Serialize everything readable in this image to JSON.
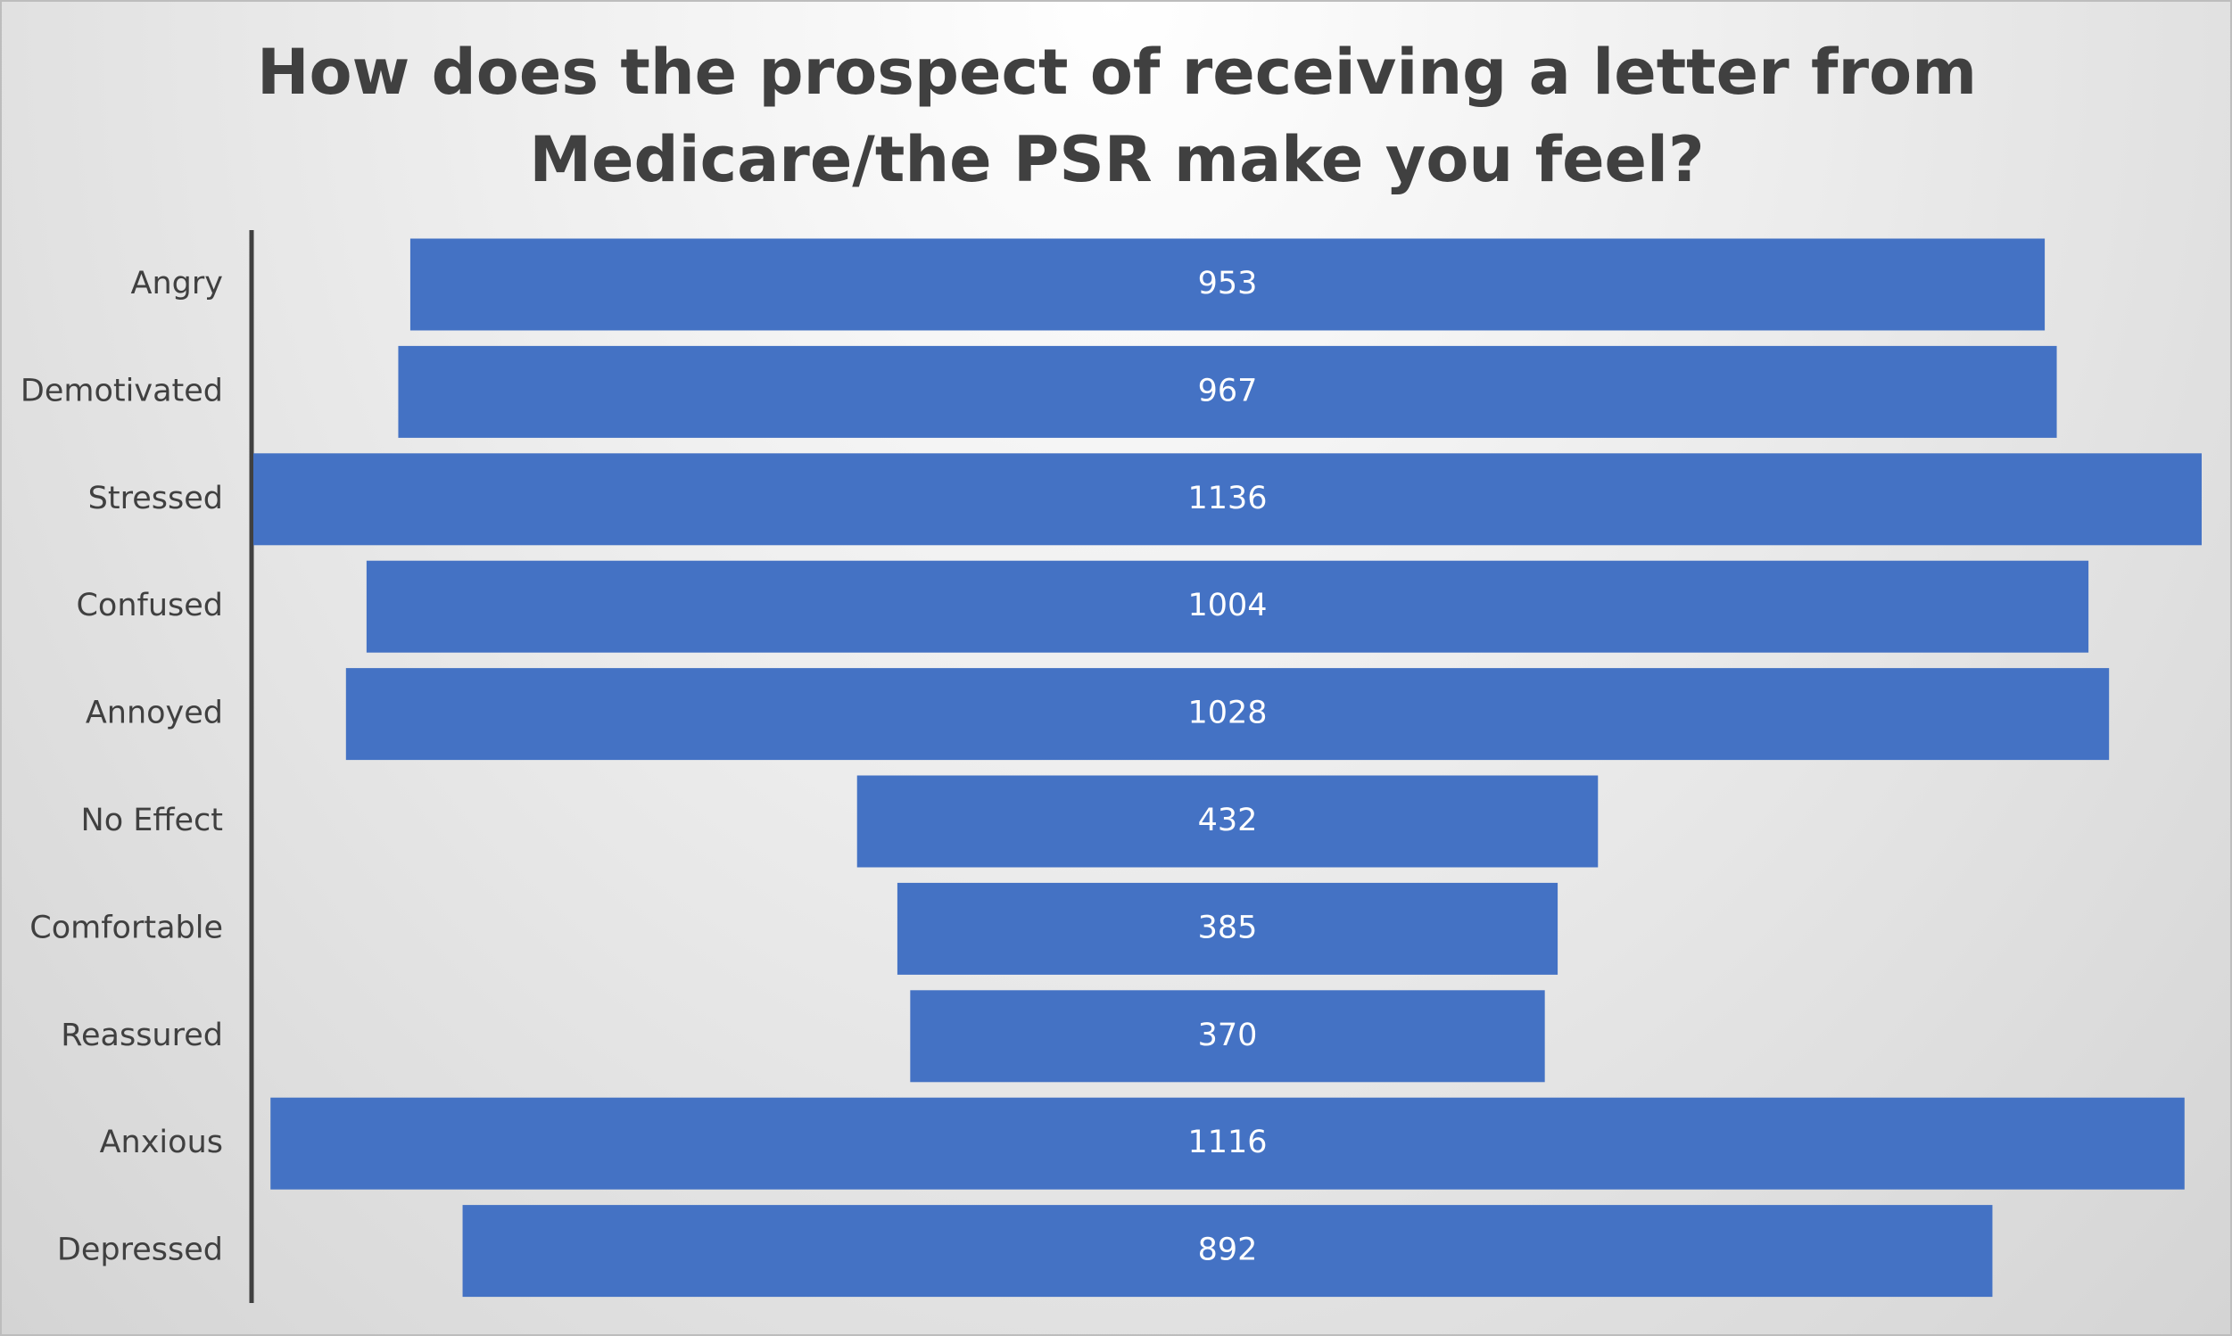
{
  "chart_data": {
    "type": "funnel",
    "title": "How does the prospect of receiving a letter from Medicare/the PSR make you feel?",
    "categories": [
      "Angry",
      "Demotivated",
      "Stressed",
      "Confused",
      "Annoyed",
      "No Effect",
      "Comfortable",
      "Reassured",
      "Anxious",
      "Depressed"
    ],
    "values": [
      953,
      967,
      1136,
      1004,
      1028,
      432,
      385,
      370,
      1116,
      892
    ],
    "color": "#4472c4"
  }
}
